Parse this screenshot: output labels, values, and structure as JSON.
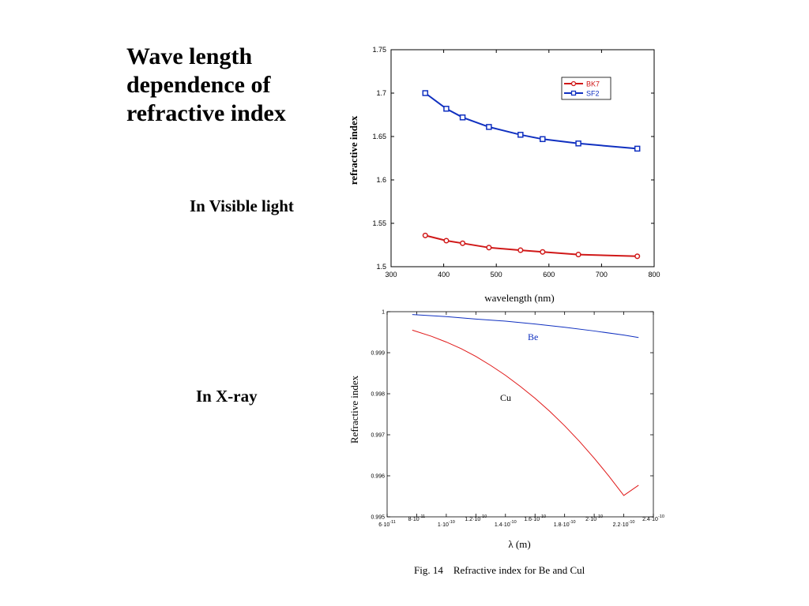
{
  "slide": {
    "title_lines": [
      "Wave length",
      "dependence of",
      "refractive index"
    ],
    "visible_label": "In Visible light",
    "xray_label": "In X-ray",
    "caption": "Fig. 14　Refractive index for Be and Cul"
  },
  "chart_data": [
    {
      "id": "visible",
      "type": "line",
      "title": "",
      "xlabel": "wavelength (nm)",
      "ylabel": "refractive index",
      "xlim": [
        300,
        800
      ],
      "ylim": [
        1.5,
        1.75
      ],
      "x_ticks": [
        300,
        400,
        500,
        600,
        700,
        800
      ],
      "x_tick_labels": [
        "300",
        "400",
        "500",
        "600",
        "700",
        "800"
      ],
      "y_ticks": [
        1.5,
        1.55,
        1.6,
        1.65,
        1.7,
        1.75
      ],
      "y_tick_labels": [
        "1.5",
        "1.55",
        "1.6",
        "1.65",
        "1.7",
        "1.75"
      ],
      "grid": false,
      "legend": "top-right",
      "series": [
        {
          "name": "BK7",
          "color": "#d01818",
          "marker": "circle",
          "x": [
            365,
            405,
            436,
            486,
            546,
            588,
            656,
            768
          ],
          "y": [
            1.536,
            1.53,
            1.527,
            1.522,
            1.519,
            1.517,
            1.514,
            1.512
          ]
        },
        {
          "name": "SF2",
          "color": "#1030c0",
          "marker": "square",
          "x": [
            365,
            405,
            436,
            486,
            546,
            588,
            656,
            768
          ],
          "y": [
            1.7,
            1.682,
            1.672,
            1.661,
            1.652,
            1.647,
            1.642,
            1.636
          ]
        }
      ]
    },
    {
      "id": "xray",
      "type": "line",
      "title": "",
      "xlabel": "λ (m)",
      "ylabel": "Refractive index",
      "xlim": [
        6e-11,
        2.4e-10
      ],
      "ylim": [
        0.995,
        1.0
      ],
      "x_ticks": [
        6e-11,
        8e-11,
        1e-10,
        1.2e-10,
        1.4e-10,
        1.6e-10,
        1.8e-10,
        2e-10,
        2.2e-10,
        2.4e-10
      ],
      "x_tick_labels": [
        "6·10{-11}",
        "8·10{-11}",
        "1·10{-10}",
        "1.2·10{-10}",
        "1.4·10{-10}",
        "1.6·10{-10}",
        "1.8·10{-10}",
        "2·10{-10}",
        "2.2·10{-10}",
        "2.4·10{-10}"
      ],
      "y_ticks": [
        0.995,
        0.996,
        0.997,
        0.998,
        0.999,
        1.0
      ],
      "y_tick_labels": [
        "0.995",
        "0.996",
        "0.997",
        "0.998",
        "0.999",
        "1"
      ],
      "grid": false,
      "series": [
        {
          "name": "Be",
          "color": "#1030c0",
          "x": [
            7.7e-11,
            1e-10,
            1.2e-10,
            1.4e-10,
            1.6e-10,
            1.8e-10,
            2e-10,
            2.2e-10,
            2.3e-10
          ],
          "y": [
            0.99993,
            0.99988,
            0.99982,
            0.99977,
            0.9997,
            0.99962,
            0.99953,
            0.99943,
            0.99937
          ]
        },
        {
          "name": "Cu",
          "color": "#e01818",
          "x": [
            7.7e-11,
            9e-11,
            1e-10,
            1.1e-10,
            1.2e-10,
            1.3e-10,
            1.4e-10,
            1.5e-10,
            1.6e-10,
            1.7e-10,
            1.8e-10,
            1.9e-10,
            2e-10,
            2.1e-10,
            2.2e-10,
            2.3e-10
          ],
          "y": [
            0.99955,
            0.9994,
            0.99926,
            0.9991,
            0.99891,
            0.99869,
            0.99845,
            0.99818,
            0.99789,
            0.99757,
            0.99722,
            0.99684,
            0.99643,
            0.99599,
            0.99552,
            0.99577
          ]
        }
      ]
    }
  ]
}
